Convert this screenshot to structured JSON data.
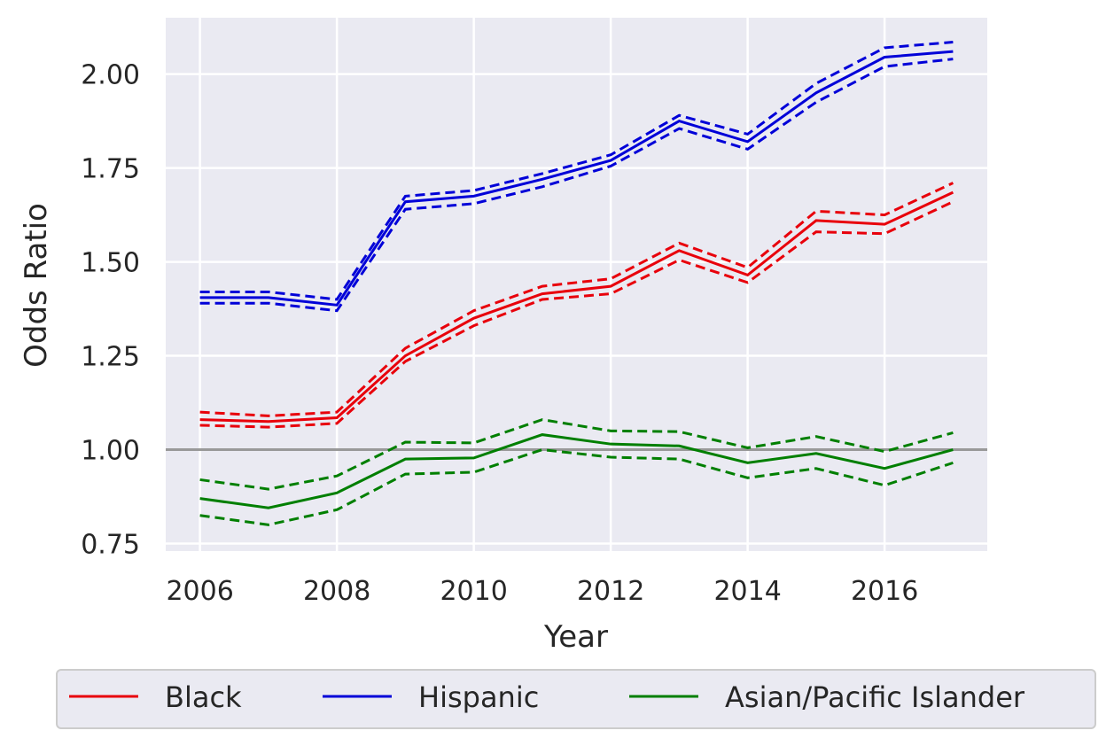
{
  "chart_data": {
    "type": "line",
    "xlabel": "Year",
    "ylabel": "Odds Ratio",
    "xlim": [
      2005.5,
      2017.5
    ],
    "ylim": [
      0.73,
      2.15
    ],
    "xticks": [
      2006,
      2008,
      2010,
      2012,
      2014,
      2016
    ],
    "yticks": [
      0.75,
      1.0,
      1.25,
      1.5,
      1.75,
      2.0
    ],
    "ytick_labels": [
      "0.75",
      "1.00",
      "1.25",
      "1.50",
      "1.75",
      "2.00"
    ],
    "grid": true,
    "reference_line": 1.0,
    "legend_position": "bottom",
    "x": [
      2006,
      2007,
      2008,
      2009,
      2010,
      2011,
      2012,
      2013,
      2014,
      2015,
      2016,
      2017
    ],
    "series": [
      {
        "name": "Black",
        "color": "#e8000b",
        "values": [
          1.08,
          1.075,
          1.085,
          1.25,
          1.35,
          1.415,
          1.435,
          1.53,
          1.465,
          1.61,
          1.6,
          1.685
        ],
        "upper": [
          1.1,
          1.09,
          1.1,
          1.27,
          1.37,
          1.435,
          1.455,
          1.55,
          1.485,
          1.635,
          1.625,
          1.71
        ],
        "lower": [
          1.065,
          1.06,
          1.07,
          1.235,
          1.33,
          1.4,
          1.415,
          1.505,
          1.445,
          1.58,
          1.575,
          1.66
        ]
      },
      {
        "name": "Hispanic",
        "color": "#0000d8",
        "values": [
          1.405,
          1.405,
          1.385,
          1.66,
          1.675,
          1.72,
          1.77,
          1.875,
          1.82,
          1.95,
          2.045,
          2.06
        ],
        "upper": [
          1.42,
          1.42,
          1.4,
          1.675,
          1.69,
          1.735,
          1.785,
          1.89,
          1.84,
          1.975,
          2.07,
          2.085
        ],
        "lower": [
          1.39,
          1.39,
          1.37,
          1.64,
          1.655,
          1.7,
          1.755,
          1.855,
          1.8,
          1.925,
          2.02,
          2.04
        ]
      },
      {
        "name": "Asian/Pacific Islander",
        "color": "#007f00",
        "values": [
          0.87,
          0.845,
          0.885,
          0.975,
          0.978,
          1.04,
          1.015,
          1.01,
          0.965,
          0.99,
          0.95,
          1.0
        ],
        "upper": [
          0.92,
          0.895,
          0.93,
          1.02,
          1.018,
          1.08,
          1.05,
          1.048,
          1.005,
          1.035,
          0.995,
          1.045
        ],
        "lower": [
          0.825,
          0.8,
          0.84,
          0.935,
          0.94,
          1.0,
          0.98,
          0.975,
          0.925,
          0.95,
          0.905,
          0.965
        ]
      }
    ]
  }
}
